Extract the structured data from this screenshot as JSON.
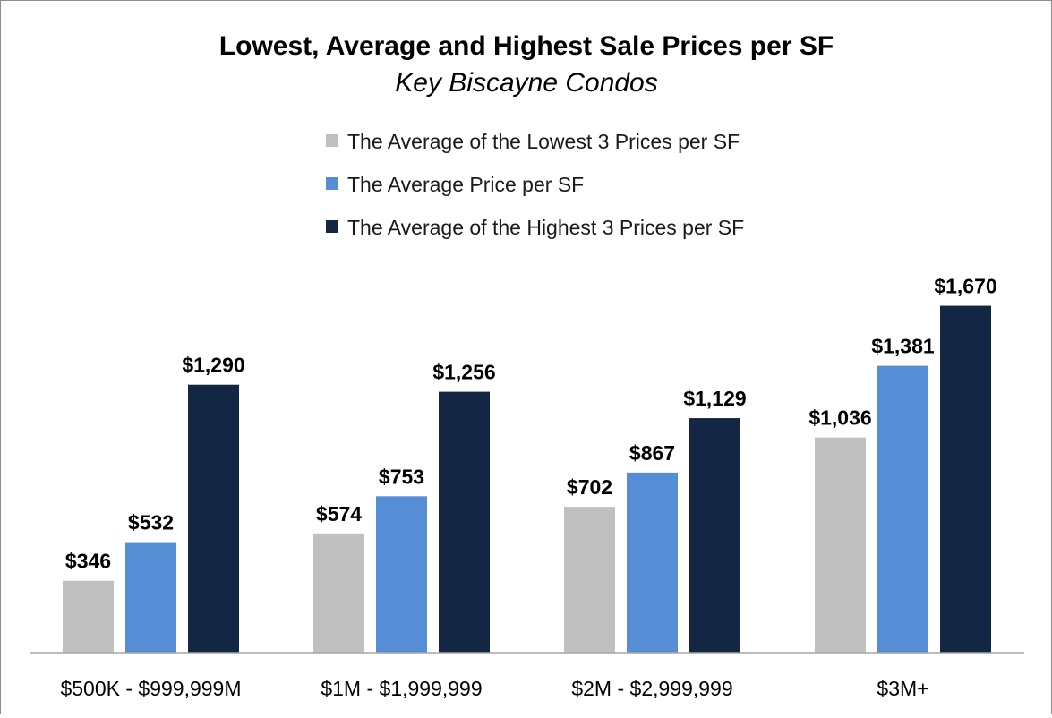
{
  "chart_data": {
    "type": "bar",
    "title": "Lowest, Average and Highest Sale Prices per SF",
    "subtitle": "Key Biscayne Condos",
    "xlabel": "",
    "ylabel": "",
    "ylim": [
      0,
      1800
    ],
    "grid": false,
    "legend_position": "top",
    "categories": [
      "$500K - $999,999M",
      "$1M - $1,999,999",
      "$2M - $2,999,999",
      "$3M+"
    ],
    "series": [
      {
        "name": "The Average of the Lowest 3 Prices per SF",
        "color": "#c0c0c0",
        "values": [
          346,
          574,
          702,
          1036
        ],
        "labels": [
          "$346",
          "$574",
          "$702",
          "$1,036"
        ]
      },
      {
        "name": "The Average Price per SF",
        "color": "#558ed5",
        "values": [
          532,
          753,
          867,
          1381
        ],
        "labels": [
          "$532",
          "$753",
          "$867",
          "$1,381"
        ]
      },
      {
        "name": "The Average of the Highest 3 Prices per SF",
        "color": "#132643",
        "values": [
          1290,
          1256,
          1129,
          1670
        ],
        "labels": [
          "$1,290",
          "$1,256",
          "$1,129",
          "$1,670"
        ]
      }
    ]
  }
}
